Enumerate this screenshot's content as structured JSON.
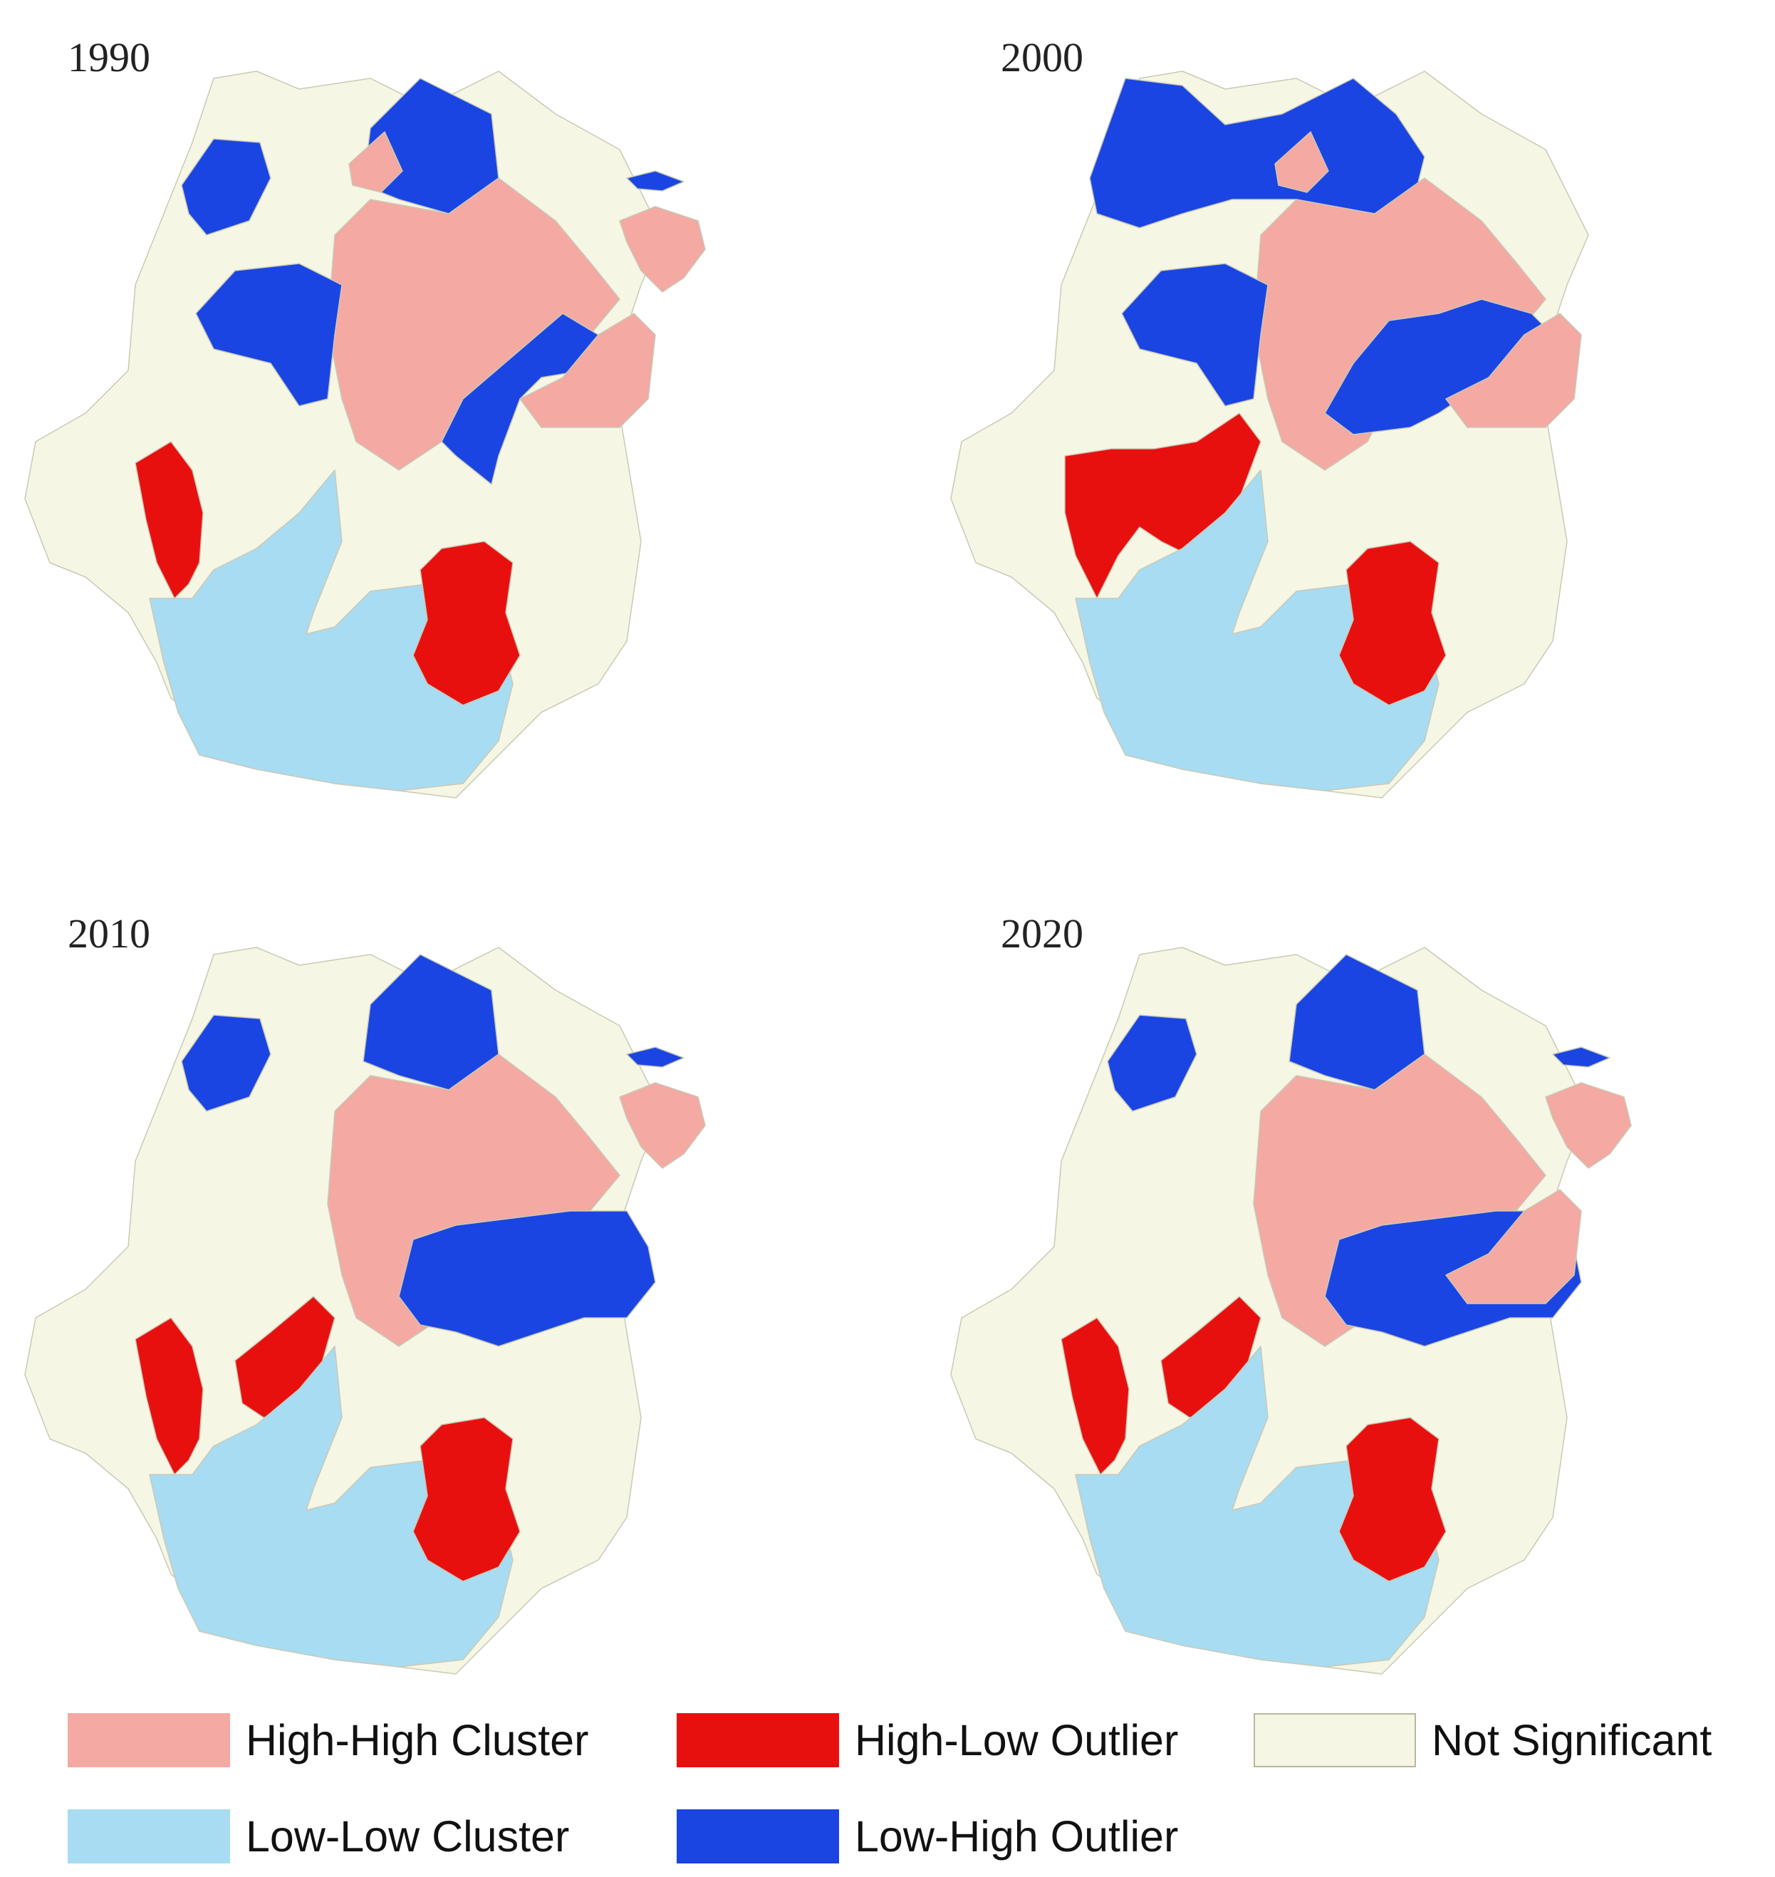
{
  "panels": [
    {
      "year": "1990",
      "regions": [
        {
          "class": "NS",
          "id": "ns-north"
        },
        {
          "class": "LH",
          "id": "lh-nw"
        },
        {
          "class": "LH",
          "id": "lh-north"
        },
        {
          "class": "HH",
          "id": "hh-north-small"
        },
        {
          "class": "HH",
          "id": "hh-center"
        },
        {
          "class": "LH",
          "id": "lh-west-mid"
        },
        {
          "class": "LH",
          "id": "lh-east-mid"
        },
        {
          "class": "HH",
          "id": "hh-east"
        },
        {
          "class": "HL",
          "id": "hl-west"
        },
        {
          "class": "LL",
          "id": "ll-south"
        },
        {
          "class": "HL",
          "id": "hl-southeast"
        },
        {
          "class": "LH",
          "id": "lh-island"
        },
        {
          "class": "HH",
          "id": "hh-island"
        }
      ]
    },
    {
      "year": "2000",
      "regions": [
        {
          "class": "NS",
          "id": "ns-north"
        },
        {
          "class": "LH",
          "id": "lh-north-wide"
        },
        {
          "class": "HH",
          "id": "hh-north-small"
        },
        {
          "class": "HH",
          "id": "hh-center"
        },
        {
          "class": "LH",
          "id": "lh-west-mid"
        },
        {
          "class": "LH",
          "id": "lh-center-east"
        },
        {
          "class": "HH",
          "id": "hh-east"
        },
        {
          "class": "HL",
          "id": "hl-west-pair"
        },
        {
          "class": "LL",
          "id": "ll-south"
        },
        {
          "class": "HL",
          "id": "hl-southeast"
        }
      ]
    },
    {
      "year": "2010",
      "regions": [
        {
          "class": "NS",
          "id": "ns-north"
        },
        {
          "class": "LH",
          "id": "lh-nw"
        },
        {
          "class": "LH",
          "id": "lh-north"
        },
        {
          "class": "HH",
          "id": "hh-center"
        },
        {
          "class": "LH",
          "id": "lh-east-band"
        },
        {
          "class": "HL",
          "id": "hl-west"
        },
        {
          "class": "HL",
          "id": "hl-west-2"
        },
        {
          "class": "LL",
          "id": "ll-south"
        },
        {
          "class": "HL",
          "id": "hl-southeast"
        },
        {
          "class": "LH",
          "id": "lh-island"
        },
        {
          "class": "HH",
          "id": "hh-island"
        }
      ]
    },
    {
      "year": "2020",
      "regions": [
        {
          "class": "NS",
          "id": "ns-north"
        },
        {
          "class": "LH",
          "id": "lh-nw"
        },
        {
          "class": "LH",
          "id": "lh-north"
        },
        {
          "class": "HH",
          "id": "hh-center"
        },
        {
          "class": "LH",
          "id": "lh-east-band"
        },
        {
          "class": "HH",
          "id": "hh-east"
        },
        {
          "class": "HL",
          "id": "hl-west"
        },
        {
          "class": "HL",
          "id": "hl-west-2"
        },
        {
          "class": "LL",
          "id": "ll-south"
        },
        {
          "class": "HL",
          "id": "hl-southeast"
        },
        {
          "class": "LH",
          "id": "lh-island"
        },
        {
          "class": "HH",
          "id": "hh-island"
        }
      ]
    }
  ],
  "legend": {
    "items": [
      {
        "key": "HH",
        "label": "High-High Cluster",
        "color": "#f4a9a3"
      },
      {
        "key": "HL",
        "label": "High-Low Outlier",
        "color": "#e8100f"
      },
      {
        "key": "NS",
        "label": "Not Significant",
        "color": "#f6f6e4"
      },
      {
        "key": "LL",
        "label": "Low-Low Cluster",
        "color": "#a8dcf2"
      },
      {
        "key": "LH",
        "label": "Low-High Outlier",
        "color": "#1a45e2"
      }
    ]
  },
  "colors": {
    "HH": "#f4a9a3",
    "HL": "#e8100f",
    "NS": "#f6f6e4",
    "LL": "#a8dcf2",
    "LH": "#1a45e2",
    "border": "#c9c9b6"
  }
}
